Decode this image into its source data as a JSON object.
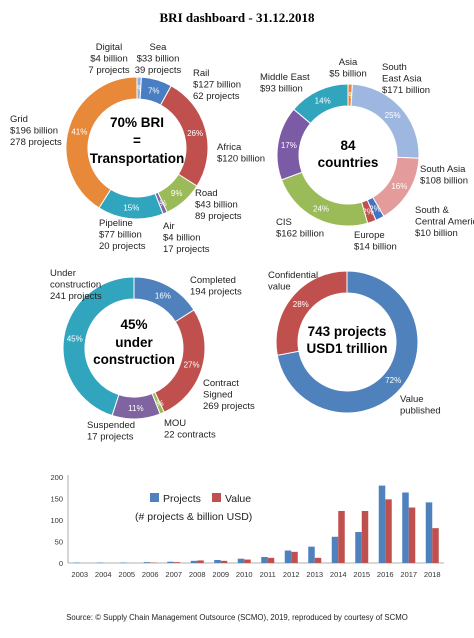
{
  "title": "BRI dashboard - 31.12.2018",
  "source": "Source: © Supply Chain Management Outsource (SCMO), 2019, reproduced by courtesy of SCMO",
  "chart_data": [
    {
      "type": "pie",
      "center_text": [
        "70% BRI",
        "=",
        "Transportation"
      ],
      "slices": [
        {
          "label": [
            "Digital",
            "$4 billion",
            "7 projects"
          ],
          "value": 1,
          "pct": "1%",
          "color": "#8fb0e0"
        },
        {
          "label": [
            "Sea",
            "$33 billion",
            "39 projects"
          ],
          "value": 7,
          "pct": "7%",
          "color": "#4a7ec2"
        },
        {
          "label": [
            "Rail",
            "$127 billion",
            "62 projects"
          ],
          "value": 26,
          "pct": "26%",
          "color": "#c0504d"
        },
        {
          "label": [
            "Road",
            "$43 billion",
            "89 projects"
          ],
          "value": 9,
          "pct": "9%",
          "color": "#9bbb59"
        },
        {
          "label": [
            "Air",
            "$4 billion",
            "17 projects"
          ],
          "value": 1,
          "pct": "1%",
          "color": "#7b68a8"
        },
        {
          "label": [
            "Pipeline",
            "$77 billion",
            "20 projects"
          ],
          "value": 15,
          "pct": "15%",
          "color": "#31a5be"
        },
        {
          "label": [
            "Grid",
            "$196 billion",
            "278 projects"
          ],
          "value": 41,
          "pct": "41%",
          "color": "#e8893a"
        }
      ]
    },
    {
      "type": "pie",
      "center_text": [
        "84",
        "countries"
      ],
      "slices": [
        {
          "label": [
            "Asia",
            "$5 billion"
          ],
          "value": 1,
          "pct": "1%",
          "color": "#e8893a"
        },
        {
          "label": [
            "South",
            "East Asia",
            "$171 billion"
          ],
          "value": 25,
          "pct": "25%",
          "color": "#9db7e0"
        },
        {
          "label": [
            "South Asia",
            "$108 billion"
          ],
          "value": 16,
          "pct": "16%",
          "color": "#e39b9b"
        },
        {
          "label": [
            "South &",
            "Central America",
            "$10 billion"
          ],
          "value": 2,
          "pct": "2%",
          "color": "#4472c4"
        },
        {
          "label": [
            "Europe",
            "$14 billion"
          ],
          "value": 2,
          "pct": "2%",
          "color": "#c0504d"
        },
        {
          "label": [
            "CIS",
            "$162 billion"
          ],
          "value": 24,
          "pct": "24%",
          "color": "#9bbb59"
        },
        {
          "label": [
            "Africa",
            "$120 billion"
          ],
          "value": 17,
          "pct": "17%",
          "color": "#7b5aa6"
        },
        {
          "label": [
            "Middle East",
            "$93 billion"
          ],
          "value": 14,
          "pct": "14%",
          "color": "#31a5be"
        }
      ]
    },
    {
      "type": "pie",
      "center_text": [
        "45%",
        "under",
        "construction"
      ],
      "slices": [
        {
          "label": [
            "Completed",
            "194 projects"
          ],
          "value": 16,
          "pct": "16%",
          "color": "#4f81bd"
        },
        {
          "label": [
            "Contract",
            "Signed",
            "269 projects"
          ],
          "value": 27,
          "pct": "27%",
          "color": "#c0504d"
        },
        {
          "label": [
            "MOU",
            "22 contracts"
          ],
          "value": 1,
          "pct": "1%",
          "color": "#9bbb59"
        },
        {
          "label": [
            "Suspended",
            "17 projects"
          ],
          "value": 11,
          "pct": "11%",
          "color": "#8064a2"
        },
        {
          "label": [
            "Under",
            "construction",
            "241 projects"
          ],
          "value": 45,
          "pct": "45%",
          "color": "#31a5be"
        }
      ]
    },
    {
      "type": "pie",
      "center_text": [
        "743 projects",
        "USD1 trillion"
      ],
      "slices": [
        {
          "label": [
            "Value",
            "published"
          ],
          "value": 72,
          "pct": "72%",
          "color": "#4f81bd"
        },
        {
          "label": [
            "Confidential",
            "value"
          ],
          "value": 28,
          "pct": "28%",
          "color": "#c0504d"
        }
      ]
    },
    {
      "type": "bar",
      "categories": [
        "2003",
        "2004",
        "2005",
        "2006",
        "2007",
        "2008",
        "2009",
        "2010",
        "2011",
        "2012",
        "2013",
        "2014",
        "2015",
        "2016",
        "2017",
        "2018"
      ],
      "series": [
        {
          "name": "Projects",
          "color": "#4f81bd",
          "values": [
            1,
            1,
            1,
            2,
            3,
            5,
            7,
            10,
            14,
            29,
            38,
            61,
            72,
            180,
            164,
            141
          ]
        },
        {
          "name": "Value",
          "color": "#c0504d",
          "values": [
            0,
            0,
            0,
            1,
            2,
            6,
            5,
            8,
            12,
            26,
            12,
            121,
            121,
            148,
            129,
            81
          ]
        }
      ],
      "annotation": "(# projects & billion USD)",
      "ylim": [
        0,
        200
      ],
      "yticks": [
        "0",
        "50",
        "100",
        "150",
        "200"
      ]
    }
  ]
}
